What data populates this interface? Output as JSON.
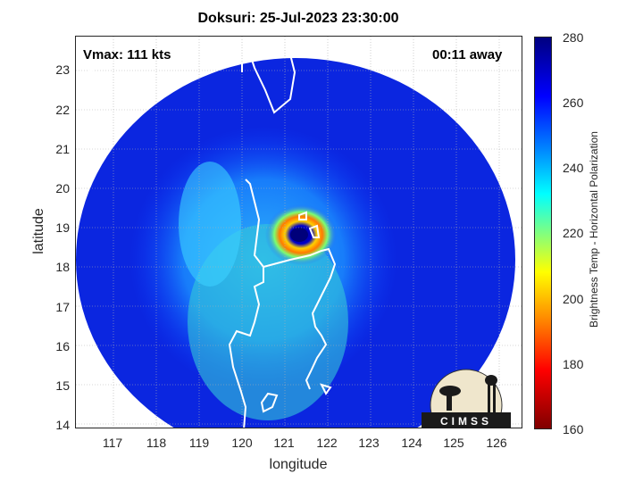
{
  "title": "Doksuri: 25-Jul-2023 23:30:00",
  "vmax": "Vmax: 111 kts",
  "away": "00:11 away",
  "xlabel": "longitude",
  "ylabel": "latitude",
  "xticks": [
    "117",
    "118",
    "119",
    "120",
    "121",
    "122",
    "123",
    "124",
    "125",
    "126"
  ],
  "yticks": [
    "23",
    "22",
    "21",
    "20",
    "19",
    "18",
    "17",
    "16",
    "15",
    "14"
  ],
  "colorbar": {
    "label": "Brightness Temp - Horizontal Polarization",
    "ticks": [
      "280",
      "260",
      "240",
      "220",
      "200",
      "180",
      "160"
    ],
    "range": [
      160,
      280
    ]
  },
  "logo_text": "CIMSS",
  "map": {
    "lon_range": [
      116.2,
      126.7
    ],
    "lat_range": [
      13.9,
      23.85
    ],
    "storm_center": {
      "lon": 121.5,
      "lat": 18.9
    }
  }
}
